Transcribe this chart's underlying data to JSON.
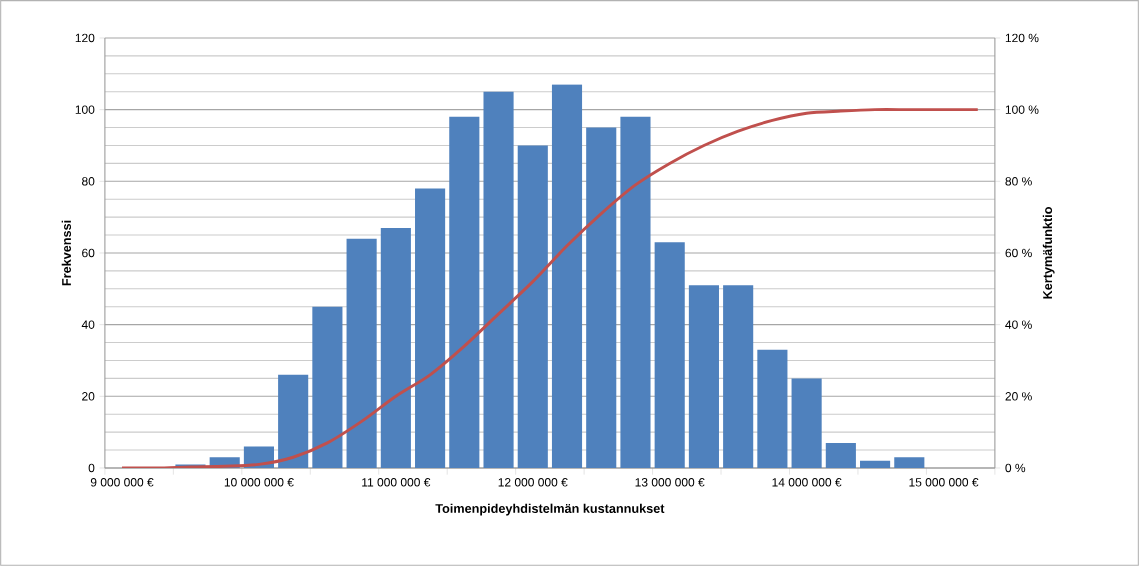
{
  "chart_data": {
    "type": "bar",
    "xlabel": "Toimenpideyhdistelmän kustannukset",
    "ylabel": "Frekvenssi",
    "y2label": "Kertymäfunktio",
    "categories": [
      "9 000 000 €",
      null,
      null,
      null,
      "10 000 000 €",
      null,
      null,
      null,
      "11 000 000 €",
      null,
      null,
      null,
      "12 000 000 €",
      null,
      null,
      null,
      "13 000 000 €",
      null,
      null,
      null,
      "14 000 000 €",
      null,
      null,
      null,
      "15 000 000 €",
      null
    ],
    "series": [
      {
        "color": "#4f81bd",
        "values": [
          0,
          0,
          1,
          3,
          6,
          26,
          45,
          64,
          67,
          78,
          98,
          105,
          90,
          107,
          95,
          98,
          63,
          51,
          51,
          33,
          25,
          7,
          2,
          3,
          0,
          0
        ]
      },
      {
        "type": "line",
        "axis": "y2",
        "color": "#c0504d",
        "values": [
          0,
          0,
          0.3,
          0.5,
          1,
          3,
          7,
          13,
          20,
          26,
          34,
          43,
          52,
          62,
          71,
          79,
          85,
          90,
          94,
          97,
          99,
          99.6,
          100,
          100,
          100,
          100
        ]
      }
    ],
    "ylim": [
      0,
      120
    ],
    "yticks": [
      0,
      20,
      40,
      60,
      80,
      100,
      120
    ],
    "y2lim": [
      0,
      120
    ],
    "y2ticks": [
      {
        "value": 0,
        "label": "0 %"
      },
      {
        "value": 20,
        "label": "20 %"
      },
      {
        "value": 40,
        "label": "40 %"
      },
      {
        "value": 60,
        "label": "60 %"
      },
      {
        "value": 80,
        "label": "80 %"
      },
      {
        "value": 100,
        "label": "100 %"
      },
      {
        "value": 120,
        "label": "120 %"
      }
    ],
    "grid": "y",
    "marker": "none",
    "line_style": "solid"
  }
}
